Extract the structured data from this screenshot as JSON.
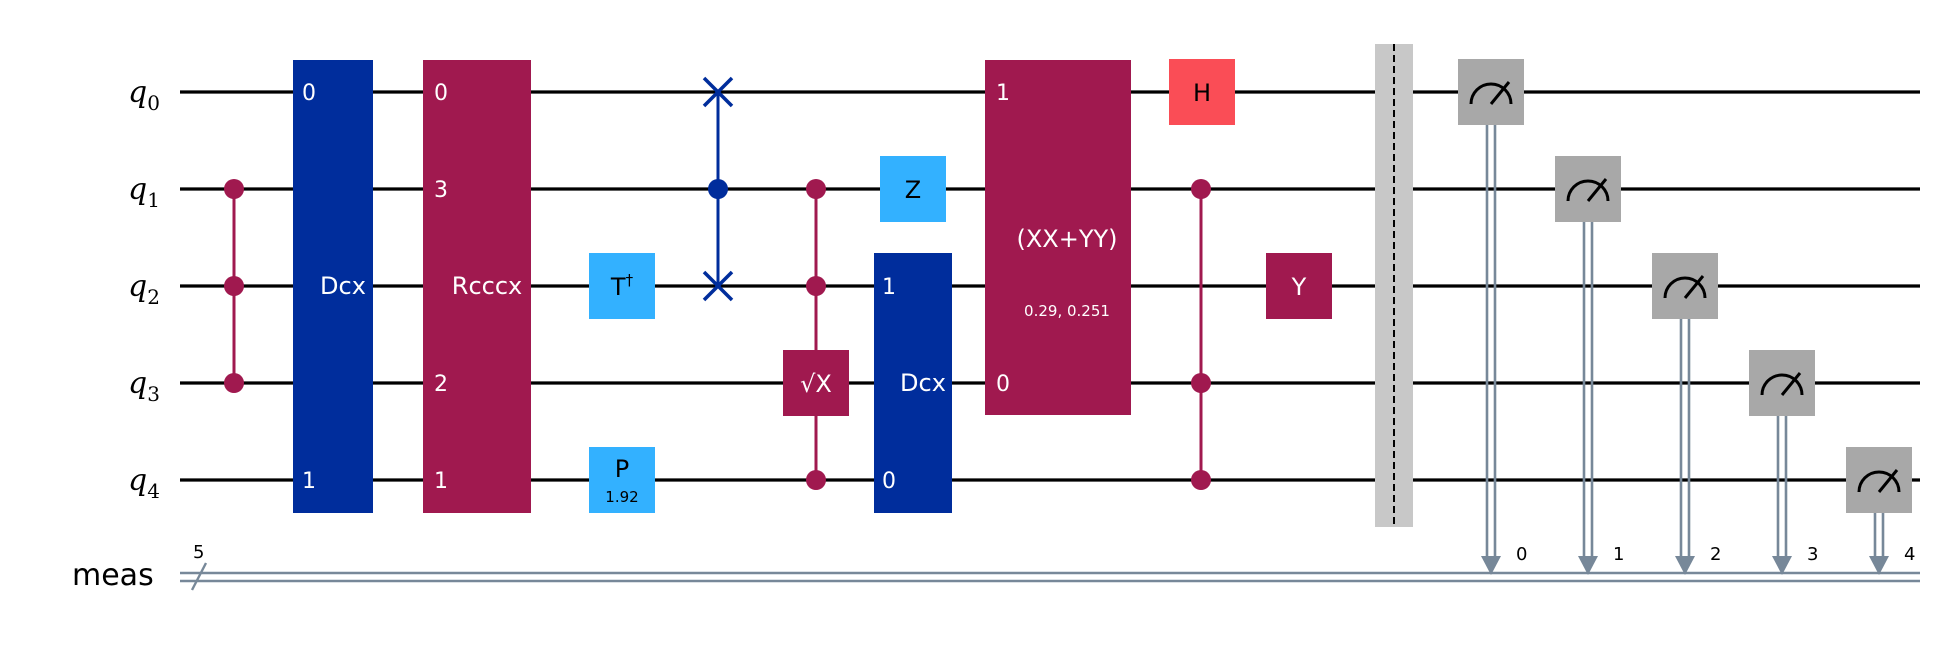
{
  "qubits": [
    {
      "name": "q",
      "index": "0"
    },
    {
      "name": "q",
      "index": "1"
    },
    {
      "name": "q",
      "index": "2"
    },
    {
      "name": "q",
      "index": "3"
    },
    {
      "name": "q",
      "index": "4"
    }
  ],
  "classical": {
    "name": "meas",
    "size": "5",
    "bits": [
      "0",
      "1",
      "2",
      "3",
      "4"
    ]
  },
  "gates": {
    "dcx1": {
      "label": "Dcx",
      "port_top": "0",
      "port_bottom": "1"
    },
    "rcccx": {
      "label": "Rcccx",
      "ports": [
        "0",
        "3",
        "2",
        "1"
      ]
    },
    "tdg": {
      "label": "T",
      "dagger": "†"
    },
    "p": {
      "label": "P",
      "param": "1.92"
    },
    "sx": {
      "label": "√X"
    },
    "z": {
      "label": "Z"
    },
    "dcx2": {
      "label": "Dcx",
      "port_top": "1",
      "port_bottom": "0"
    },
    "xxyy": {
      "label": "(XX+YY)",
      "params": "0.29, 0.251",
      "port_top": "1",
      "port_bottom": "0"
    },
    "h": {
      "label": "H"
    },
    "y": {
      "label": "Y"
    }
  },
  "colors": {
    "controlled": "#a0194f",
    "dcx": "#002d9c",
    "light_blue": "#33b1ff",
    "h_red": "#fa4d56",
    "measure": "#a8a8a8",
    "barrier": "#c8c8c8",
    "classical_wire": "#778899"
  }
}
